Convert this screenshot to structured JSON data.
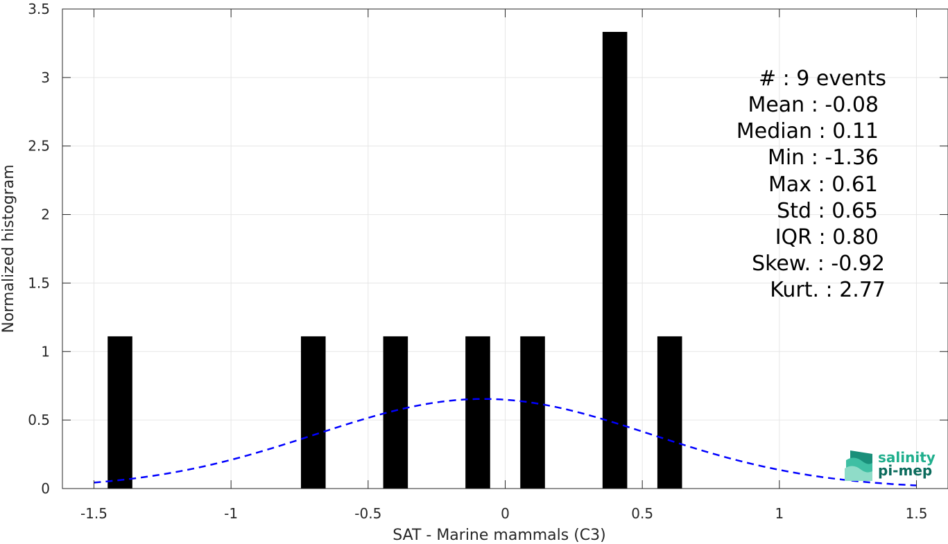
{
  "chart_data": {
    "type": "bar",
    "xlabel": "SAT - Marine mammals (C3)",
    "ylabel": "Normalized histogram",
    "xlim": [
      -1.615,
      1.615
    ],
    "ylim": [
      0,
      3.5
    ],
    "xticks": [
      -1.5,
      -1,
      -0.5,
      0,
      0.5,
      1,
      1.5
    ],
    "xtick_labels": [
      "-1.5",
      "-1",
      "-0.5",
      "0",
      "0.5",
      "1",
      "1.5"
    ],
    "yticks": [
      0,
      0.5,
      1,
      1.5,
      2,
      2.5,
      3,
      3.5
    ],
    "ytick_labels": [
      "0",
      "0.5",
      "1",
      "1.5",
      "2",
      "2.5",
      "3",
      "3.5"
    ],
    "grid": true,
    "bin_width": 0.09,
    "bars": [
      {
        "x": -1.405,
        "value": 1.111
      },
      {
        "x": -0.7,
        "value": 1.111
      },
      {
        "x": -0.4,
        "value": 1.111
      },
      {
        "x": -0.1,
        "value": 1.111
      },
      {
        "x": 0.1,
        "value": 1.111
      },
      {
        "x": 0.4,
        "value": 3.333
      },
      {
        "x": 0.6,
        "value": 1.111
      }
    ],
    "fit_curve": {
      "kind": "normal",
      "mean": -0.08,
      "std": 0.61,
      "x_range": [
        -1.5,
        1.5
      ],
      "color": "#0000ff",
      "style": "dashed"
    },
    "bar_color": "#000000"
  },
  "stats": [
    "#  : 9 events",
    "Mean : -0.08",
    "Median : 0.11",
    "Min : -1.36",
    "Max : 0.61",
    "Std : 0.65",
    "IQR : 0.80",
    "Skew. : -0.92",
    "Kurt. : 2.77"
  ],
  "logo": {
    "line1": "salinity",
    "line2": "pi-mep",
    "color1": "#1fae8c",
    "color2": "#0b6b5c"
  }
}
